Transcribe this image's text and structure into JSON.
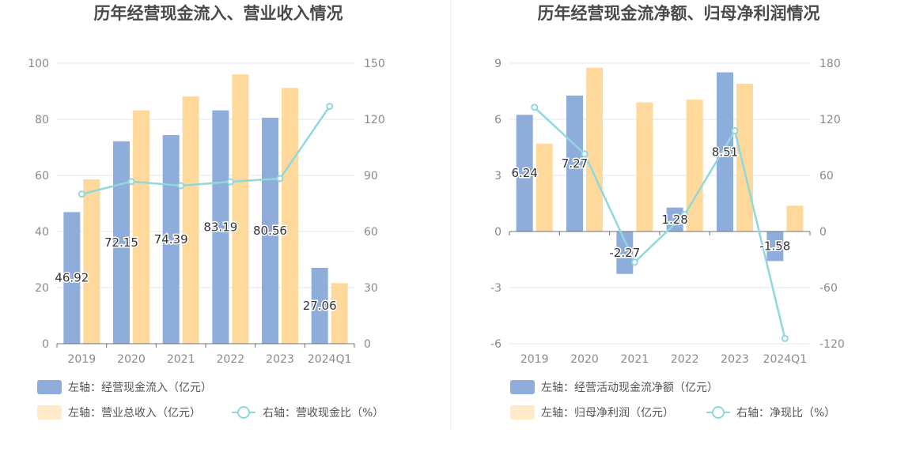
{
  "colors": {
    "bar_blue": "#8eaddb",
    "bar_orange": "#ffd99c",
    "legend_orange": "#ffebc9",
    "line_cyan": "#8fd8dc",
    "grid": "#e1e6f0",
    "axis_text": "#8a8a8a",
    "title_text": "#4a4a4a"
  },
  "chart_data": [
    {
      "type": "bar",
      "title": "历年经营现金流入、营业收入情况",
      "categories": [
        "2019",
        "2020",
        "2021",
        "2022",
        "2023",
        "2024Q1"
      ],
      "left_axis": {
        "ticks": [
          "0",
          "20",
          "40",
          "60",
          "80",
          "100"
        ],
        "ylim": [
          0,
          100
        ]
      },
      "right_axis": {
        "ticks": [
          "0",
          "30",
          "60",
          "90",
          "120",
          "150"
        ],
        "ylim": [
          0,
          150
        ]
      },
      "series": [
        {
          "name": "左轴：经营现金流入（亿元）",
          "type": "bar",
          "axis": "left",
          "values": [
            46.92,
            72.15,
            74.39,
            83.19,
            80.56,
            27.06
          ],
          "labels": [
            "46.92",
            "72.15",
            "74.39",
            "83.19",
            "80.56",
            "27.06"
          ]
        },
        {
          "name": "左轴：营业总收入（亿元）",
          "type": "bar",
          "axis": "left",
          "values": [
            58.6,
            83.2,
            88.2,
            96.0,
            91.2,
            21.6
          ]
        },
        {
          "name": "右轴：营收现金比（%）",
          "type": "line",
          "axis": "right",
          "values": [
            80.0,
            86.7,
            84.5,
            86.6,
            88.3,
            126.9
          ]
        }
      ]
    },
    {
      "type": "bar",
      "title": "历年经营现金流净额、归母净利润情况",
      "categories": [
        "2019",
        "2020",
        "2021",
        "2022",
        "2023",
        "2024Q1"
      ],
      "left_axis": {
        "ticks": [
          "-6",
          "-3",
          "0",
          "3",
          "6",
          "9"
        ],
        "ylim": [
          -6,
          9
        ]
      },
      "right_axis": {
        "ticks": [
          "-120",
          "-60",
          "0",
          "60",
          "120",
          "180"
        ],
        "ylim": [
          -120,
          180
        ]
      },
      "series": [
        {
          "name": "左轴：经营活动现金流净额（亿元）",
          "type": "bar",
          "axis": "left",
          "values": [
            6.24,
            7.27,
            -2.27,
            1.28,
            8.51,
            -1.58
          ],
          "labels": [
            "6.24",
            "7.27",
            "-2.27",
            "1.28",
            "8.51",
            "-1.58"
          ]
        },
        {
          "name": "左轴：归母净利润（亿元）",
          "type": "bar",
          "axis": "left",
          "values": [
            4.7,
            8.76,
            6.9,
            7.05,
            7.9,
            1.38
          ]
        },
        {
          "name": "右轴：净现比（%）",
          "type": "line",
          "axis": "right",
          "values": [
            132.8,
            83.0,
            -32.9,
            18.2,
            107.7,
            -114.5
          ]
        }
      ]
    }
  ]
}
